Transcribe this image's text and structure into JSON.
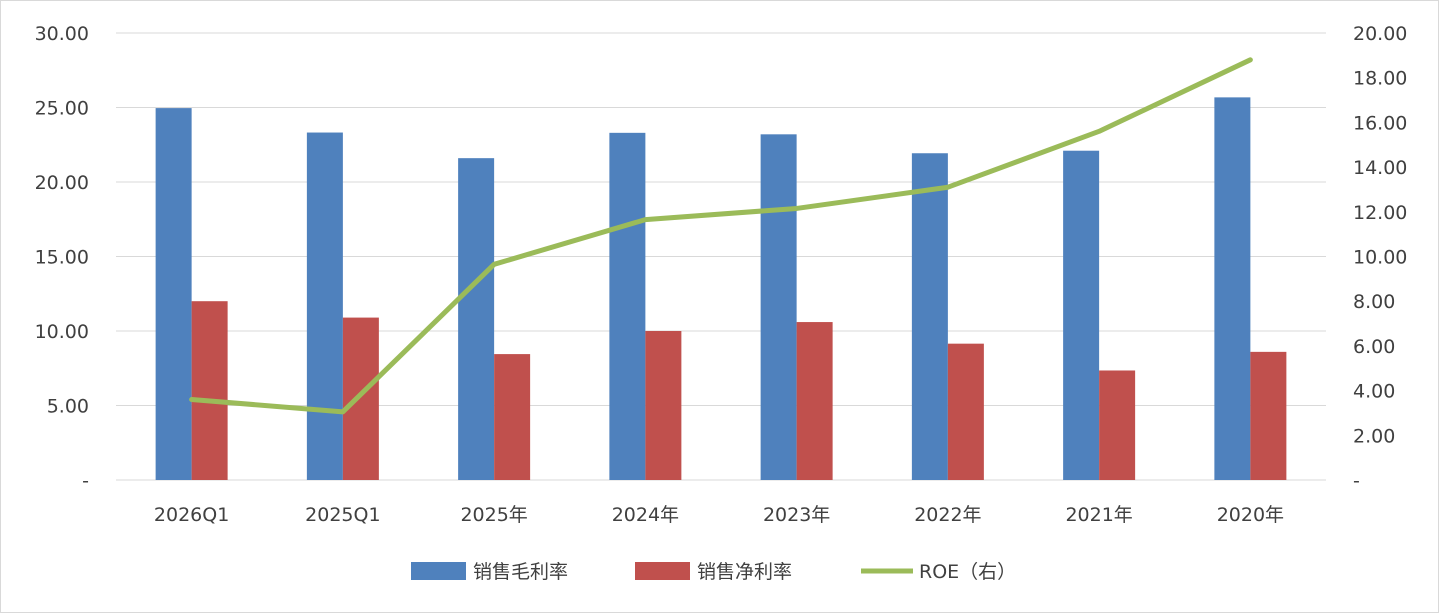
{
  "chart_data": {
    "type": "bar",
    "categories": [
      "2026Q1",
      "2025Q1",
      "2025年",
      "2024年",
      "2023年",
      "2022年",
      "2021年",
      "2020年"
    ],
    "series": [
      {
        "name": "销售毛利率",
        "type": "bar",
        "axis": "left",
        "color": "#4f81bd",
        "values": [
          24.96,
          23.32,
          21.6,
          23.3,
          23.2,
          21.93,
          22.1,
          25.68
        ]
      },
      {
        "name": "销售净利率",
        "type": "bar",
        "axis": "left",
        "color": "#c0504d",
        "values": [
          12.0,
          10.9,
          8.45,
          10.0,
          10.6,
          9.15,
          7.35,
          8.6
        ]
      },
      {
        "name": "ROE（右）",
        "type": "line",
        "axis": "right",
        "color": "#9bbb59",
        "values": [
          3.6,
          3.05,
          9.65,
          11.65,
          12.15,
          13.1,
          15.6,
          18.8
        ]
      }
    ],
    "y_left": {
      "ylim": [
        0,
        30
      ],
      "ticks": [
        0,
        5,
        10,
        15,
        20,
        25,
        30
      ],
      "tick_labels": [
        "-",
        "5.00",
        "10.00",
        "15.00",
        "20.00",
        "25.00",
        "30.00"
      ]
    },
    "y_right": {
      "ylim": [
        0,
        20
      ],
      "ticks": [
        0,
        2,
        4,
        6,
        8,
        10,
        12,
        14,
        16,
        18,
        20
      ],
      "tick_labels": [
        "-",
        "2.00",
        "4.00",
        "6.00",
        "8.00",
        "10.00",
        "12.00",
        "14.00",
        "16.00",
        "18.00",
        "20.00"
      ]
    },
    "grid": true,
    "legend_position": "bottom"
  }
}
